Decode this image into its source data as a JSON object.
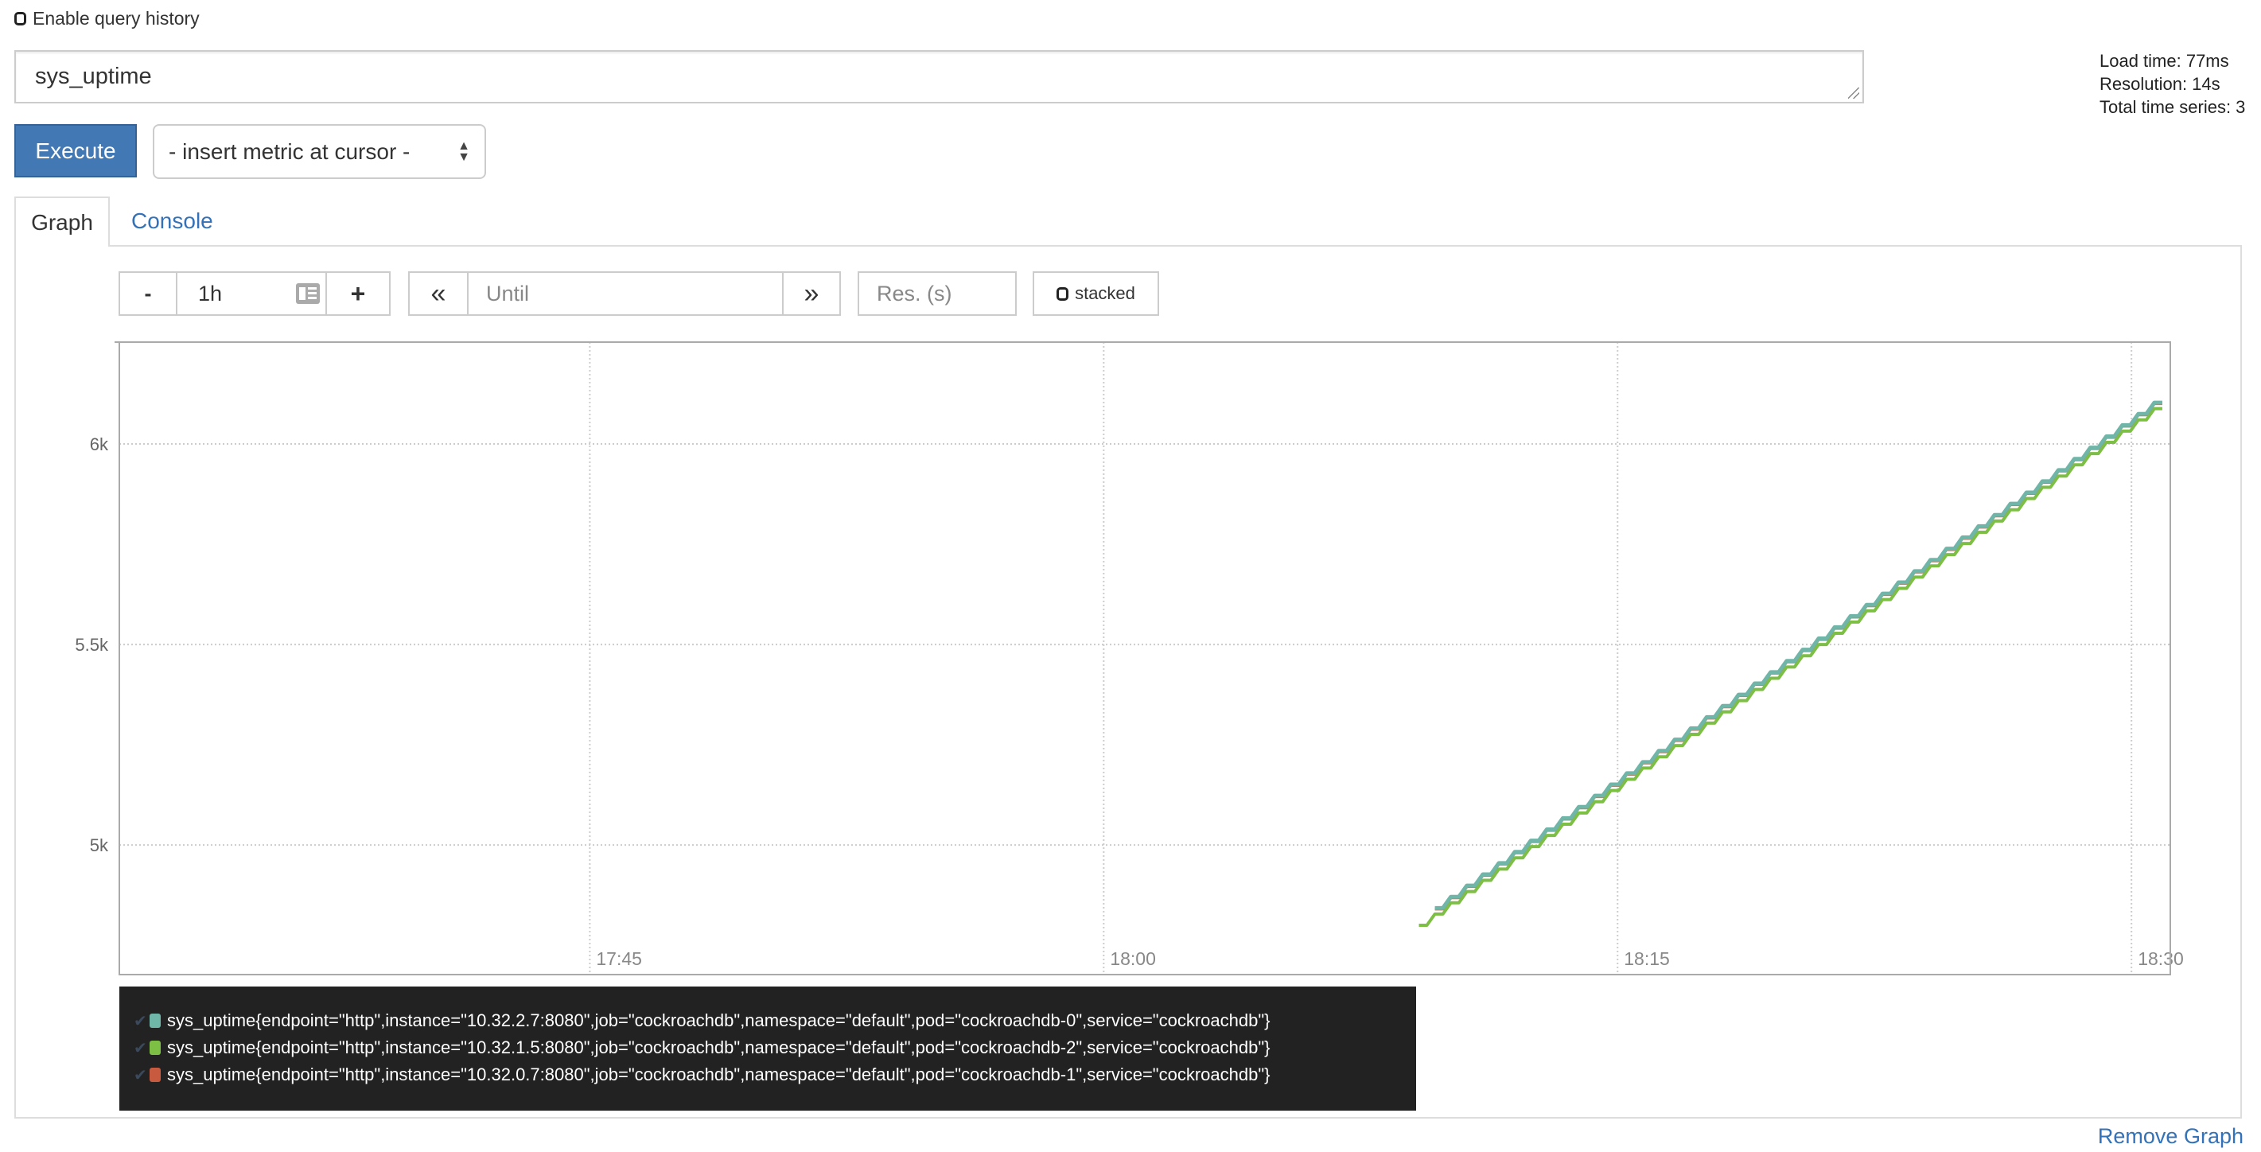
{
  "history": {
    "label": "Enable query history",
    "checked": false
  },
  "expression": {
    "value": "sys_uptime"
  },
  "stats": {
    "load_time": "Load time: 77ms",
    "resolution": "Resolution: 14s",
    "total_series": "Total time series: 3"
  },
  "execute_label": "Execute",
  "metric_select": {
    "selected": "- insert metric at cursor -"
  },
  "tabs": [
    {
      "label": "Graph",
      "active": true
    },
    {
      "label": "Console",
      "active": false
    }
  ],
  "controls": {
    "minus": "-",
    "range": "1h",
    "plus": "+",
    "back": "«",
    "until_placeholder": "Until",
    "forward": "»",
    "res_placeholder": "Res. (s)",
    "stacked_label": "stacked",
    "stacked": false,
    "icons": {
      "range": "calendar-icon",
      "back": "backward-icon",
      "forward": "forward-icon"
    }
  },
  "remove_graph": "Remove Graph",
  "chart_data": {
    "type": "line",
    "interpolation": "step",
    "grid": true,
    "xlim": [
      "17:31:16",
      "18:31:08"
    ],
    "ylim": [
      4677,
      6254
    ],
    "xticks": [
      "17:45",
      "18:00",
      "18:15",
      "18:30"
    ],
    "yticks": [
      {
        "value": 5000,
        "label": "5k"
      },
      {
        "value": 5500,
        "label": "5.5k"
      },
      {
        "value": 6000,
        "label": "6k"
      }
    ],
    "legend_placement": "bottom",
    "x": [
      "18:09:12",
      "18:09:40",
      "18:10:08",
      "18:10:36",
      "18:11:04",
      "18:11:32",
      "18:12:00",
      "18:12:28",
      "18:12:56",
      "18:13:24",
      "18:13:52",
      "18:14:20",
      "18:14:48",
      "18:15:16",
      "18:15:44",
      "18:16:12",
      "18:16:40",
      "18:17:08",
      "18:17:36",
      "18:18:04",
      "18:18:32",
      "18:19:00",
      "18:19:28",
      "18:19:56",
      "18:20:24",
      "18:20:52",
      "18:21:20",
      "18:21:48",
      "18:22:16",
      "18:22:44",
      "18:23:12",
      "18:23:40",
      "18:24:08",
      "18:24:36",
      "18:25:04",
      "18:25:32",
      "18:26:00",
      "18:26:28",
      "18:26:56",
      "18:27:24",
      "18:27:52",
      "18:28:20",
      "18:28:48",
      "18:29:16",
      "18:29:44",
      "18:30:12",
      "18:30:40"
    ],
    "series": [
      {
        "name": "sys_uptime{endpoint=\"http\",instance=\"10.32.2.7:8080\",job=\"cockroachdb\",namespace=\"default\",pod=\"cockroachdb-0\",service=\"cockroachdb\"}",
        "color": "#6fb5a8",
        "values": [
          null,
          4843,
          4871,
          4899,
          4927,
          4955,
          4983,
          5011,
          5039,
          5067,
          5095,
          5123,
          5151,
          5179,
          5207,
          5235,
          5263,
          5291,
          5319,
          5347,
          5375,
          5403,
          5431,
          5459,
          5487,
          5515,
          5543,
          5571,
          5599,
          5627,
          5655,
          5683,
          5711,
          5739,
          5767,
          5795,
          5823,
          5851,
          5879,
          5907,
          5935,
          5963,
          5991,
          6019,
          6047,
          6075,
          6103
        ]
      },
      {
        "name": "sys_uptime{endpoint=\"http\",instance=\"10.32.1.5:8080\",job=\"cockroachdb\",namespace=\"default\",pod=\"cockroachdb-2\",service=\"cockroachdb\"}",
        "color": "#7dbf45",
        "values": [
          4800,
          4828,
          4856,
          4884,
          4912,
          4940,
          4968,
          4996,
          5024,
          5052,
          5080,
          5108,
          5136,
          5164,
          5192,
          5220,
          5248,
          5276,
          5304,
          5332,
          5360,
          5388,
          5416,
          5444,
          5472,
          5500,
          5528,
          5556,
          5584,
          5612,
          5640,
          5668,
          5696,
          5724,
          5752,
          5780,
          5808,
          5836,
          5864,
          5892,
          5920,
          5948,
          5976,
          6004,
          6032,
          6060,
          6088
        ]
      },
      {
        "name": "sys_uptime{endpoint=\"http\",instance=\"10.32.0.7:8080\",job=\"cockroachdb\",namespace=\"default\",pod=\"cockroachdb-1\",service=\"cockroachdb\"}",
        "color": "#c85a3f",
        "values": [
          null,
          4841,
          4869,
          4897,
          4925,
          4953,
          4981,
          5009,
          5037,
          5065,
          5093,
          5121,
          5149,
          5177,
          5205,
          5233,
          5261,
          5289,
          5317,
          5345,
          5373,
          5401,
          5429,
          5457,
          5485,
          5513,
          5541,
          5569,
          5597,
          5625,
          5653,
          5681,
          5709,
          5737,
          5765,
          5793,
          5821,
          5849,
          5877,
          5905,
          5933,
          5961,
          5989,
          6017,
          6045,
          6073,
          6101
        ]
      }
    ]
  }
}
